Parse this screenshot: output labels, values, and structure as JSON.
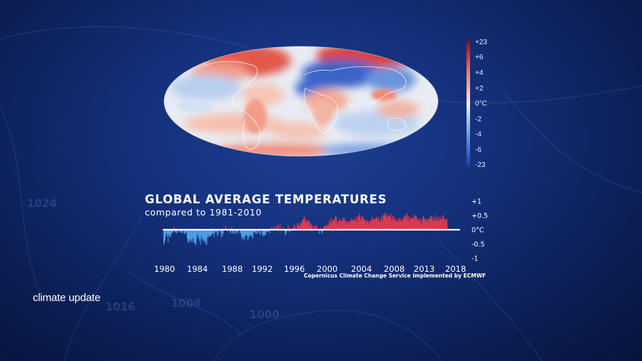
{
  "overlay": {
    "program_label": "climate update",
    "credit": "Copernicus Climate Change Service implemented by ECMWF",
    "background_isobars": [
      "1024",
      "1016",
      "1008",
      "1000"
    ]
  },
  "map_scale": {
    "unit": "°C",
    "labels": [
      "+23",
      "+6",
      "+4",
      "+2",
      "0°C",
      "-2",
      "-4",
      "-6",
      "-23"
    ],
    "colors": {
      "warm": "#d7302d",
      "neutral": "#f2f2f2",
      "cold": "#2c59c2"
    }
  },
  "colors": {
    "positive": "#e03a4e",
    "negative": "#4da1e6",
    "zero_line": "#ffffff"
  },
  "chart_data": {
    "type": "bar",
    "title": "GLOBAL AVERAGE TEMPERATURES",
    "subtitle": "compared to 1981-2010",
    "x_tick_labels": [
      "1980",
      "1984",
      "1988",
      "1992",
      "1996",
      "2000",
      "2004",
      "2008",
      "2013",
      "2018"
    ],
    "x_range": [
      1980.0,
      2019.0
    ],
    "y_tick_labels": [
      "+1",
      "+0.5",
      "0°C",
      "-0.5",
      "-1"
    ],
    "y_ticks": [
      1,
      0.5,
      0,
      -0.5,
      -1
    ],
    "ylim": [
      -1,
      1
    ],
    "series": [
      {
        "start": 1980.0,
        "step_months": 1,
        "values": [
          -0.52,
          -0.46,
          -0.37,
          -0.25,
          -0.14,
          -0.12,
          -0.23,
          -0.43,
          -0.16,
          -0.2,
          -0.26,
          -0.24,
          -0.11,
          -0.12,
          -0.1,
          -0.08,
          0.09,
          0.08,
          -0.08,
          -0.1,
          -0.1,
          -0.13,
          -0.03,
          -0.09,
          -0.03,
          -0.02,
          -0.1,
          -0.09,
          -0.06,
          -0.13,
          -0.04,
          -0.04,
          -0.11,
          -0.14,
          -0.14,
          -0.06,
          -0.1,
          -0.29,
          -0.39,
          -0.45,
          -0.44,
          -0.35,
          -0.33,
          -0.43,
          -0.34,
          -0.43,
          -0.29,
          -0.33,
          -0.47,
          -0.46,
          -0.48,
          -0.56,
          -0.33,
          -0.17,
          -0.18,
          -0.29,
          -0.39,
          -0.25,
          -0.53,
          -0.33,
          -0.2,
          -0.4,
          -0.32,
          -0.34,
          -0.45,
          -0.38,
          -0.41,
          -0.54,
          -0.51,
          -0.24,
          -0.29,
          -0.2,
          -0.24,
          -0.22,
          -0.23,
          -0.22,
          -0.15,
          -0.12,
          -0.16,
          -0.11,
          -0.26,
          -0.1,
          -0.03,
          -0.06,
          -0.09,
          -0.21,
          -0.18,
          0.03,
          -0.01,
          -0.06,
          -0.07,
          -0.27,
          -0.12,
          -0.23,
          -0.13,
          -0.01,
          0.05,
          -0.0,
          0.15,
          -0.02,
          -0.03,
          -0.05,
          0.0,
          -0.03,
          0.02,
          -0.09,
          -0.12,
          0.1,
          -0.04,
          -0.11,
          -0.15,
          -0.03,
          -0.14,
          0.03,
          -0.14,
          -0.07,
          -0.07,
          -0.14,
          -0.04,
          -0.0,
          -0.01,
          -0.12,
          -0.12,
          -0.25,
          -0.32,
          -0.24,
          -0.38,
          -0.27,
          -0.33,
          -0.2,
          -0.16,
          -0.21,
          -0.22,
          -0.38,
          -0.3,
          -0.23,
          -0.23,
          -0.17,
          -0.2,
          -0.23,
          -0.25,
          -0.31,
          -0.1,
          -0.08,
          -0.07,
          -0.11,
          -0.16,
          0.01,
          -0.12,
          -0.12,
          -0.06,
          0.01,
          -0.15,
          -0.19,
          -0.02,
          -0.04,
          -0.15,
          -0.24,
          -0.19,
          -0.21,
          -0.18,
          -0.07,
          -0.18,
          -0.07,
          -0.05,
          -0.08,
          -0.06,
          -0.01,
          -0.14,
          -0.02,
          0.1,
          0.04,
          0.04,
          0.1,
          -0.02,
          0.11,
          0.02,
          0.03,
          0.12,
          0.03,
          0.14,
          0.18,
          0.0,
          0.01,
          0.22,
          -0.0,
          -0.05,
          -0.03,
          0.1,
          0.01,
          -0.03,
          0.02,
          -0.16,
          -0.19,
          -0.1,
          -0.04,
          -0.03,
          0.17,
          -0.04,
          -0.09,
          0.07,
          -0.03,
          0.04,
          -0.05,
          0.06,
          0.07,
          0.13,
          0.19,
          0.08,
          0.03,
          0.03,
          0.24,
          0.16,
          0.18,
          0.13,
          0.13,
          0.25,
          0.25,
          0.19,
          0.31,
          0.37,
          0.37,
          0.48,
          0.43,
          0.24,
          0.35,
          0.29,
          0.33,
          0.29,
          0.34,
          0.32,
          0.15,
          0.23,
          0.21,
          0.12,
          0.16,
          0.03,
          0.09,
          0.1,
          0.15,
          0.04,
          0.18,
          0.12,
          0.03,
          0.05,
          0.04,
          -0.13,
          0.0,
          0.06,
          -0.02,
          -0.13,
          -0.09,
          0.04,
          0.08,
          0.13,
          0.12,
          0.17,
          0.08,
          0.18,
          0.12,
          0.14,
          0.21,
          0.31,
          0.26,
          0.43,
          0.2,
          0.3,
          0.37,
          0.32,
          0.35,
          0.32,
          0.49,
          0.43,
          0.45,
          0.31,
          0.17,
          0.28,
          0.31,
          0.38,
          0.29,
          0.34,
          0.31,
          0.31,
          0.36,
          0.44,
          0.34,
          0.43,
          0.3,
          0.21,
          0.33,
          0.26,
          0.21,
          0.31,
          0.3,
          0.23,
          0.29,
          0.34,
          0.4,
          0.32,
          0.34,
          0.33,
          0.4,
          0.32,
          0.35,
          0.26,
          0.46,
          0.45,
          0.26,
          0.48,
          0.5,
          0.57,
          0.37,
          0.35,
          0.48,
          0.43,
          0.47,
          0.39,
          0.31,
          0.34,
          0.35,
          0.2,
          0.34,
          0.3,
          0.3,
          0.3,
          0.17,
          0.32,
          0.32,
          0.33,
          0.39,
          0.46,
          0.36,
          0.35,
          0.35,
          0.38,
          0.4,
          0.45,
          0.42,
          0.42,
          0.29,
          0.46,
          0.34,
          0.26,
          0.35,
          0.41,
          0.48,
          0.32,
          0.52,
          0.54,
          0.48,
          0.57,
          0.61,
          0.49,
          0.42,
          0.47,
          0.56,
          0.44,
          0.48,
          0.48,
          0.57,
          0.4,
          0.31,
          0.49,
          0.37,
          0.5,
          0.32,
          0.4,
          0.32,
          0.34,
          0.27,
          0.31,
          0.41,
          0.41,
          0.3,
          0.4,
          0.35,
          0.29,
          0.32,
          0.39,
          0.39,
          0.45,
          0.49,
          0.49,
          0.57,
          0.36,
          0.57,
          0.49,
          0.47,
          0.29,
          0.38,
          0.45,
          0.38,
          0.39,
          0.43,
          0.41,
          0.51,
          0.34,
          0.47,
          0.52,
          0.47,
          0.44,
          0.4,
          0.3,
          0.33,
          0.37,
          0.4,
          0.24,
          0.36,
          0.22,
          0.39,
          0.49,
          0.45,
          0.37,
          0.37,
          0.38,
          0.36,
          0.29,
          0.37,
          0.26,
          0.38,
          0.41,
          0.47,
          0.35,
          0.5,
          0.46,
          0.3,
          0.46,
          0.34,
          0.34,
          0.54,
          0.32,
          0.42,
          0.31,
          0.4,
          0.47,
          0.28,
          0.36,
          0.46,
          0.37,
          0.37,
          0.38,
          0.49,
          0.52,
          0.4,
          0.4,
          0.3,
          0.35,
          0.39,
          0.35
        ]
      }
    ],
    "grid": false,
    "legend": "none"
  }
}
